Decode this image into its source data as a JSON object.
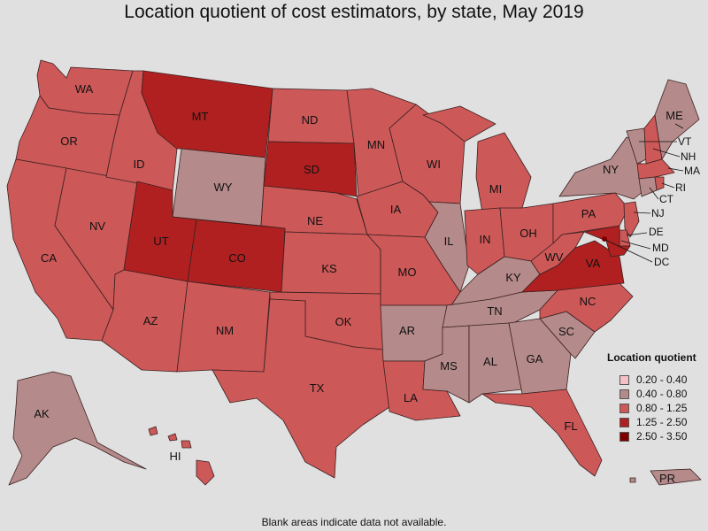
{
  "title": "Location quotient of cost estimators, by state, May 2019",
  "note": "Blank areas indicate data not available.",
  "legend": {
    "title": "Location quotient",
    "items": [
      {
        "label": "0.20 - 0.40",
        "color": "#f4c2c6"
      },
      {
        "label": "0.40 - 0.80",
        "color": "#b58a8a"
      },
      {
        "label": "0.80 - 1.25",
        "color": "#cd5858"
      },
      {
        "label": "1.25 - 2.50",
        "color": "#b02020"
      },
      {
        "label": "2.50 - 3.50",
        "color": "#800000"
      }
    ]
  },
  "chart_data": {
    "type": "choropleth",
    "title": "Location quotient of cost estimators, by state, May 2019",
    "legend_title": "Location quotient",
    "bins": [
      "0.20 - 0.40",
      "0.40 - 0.80",
      "0.80 - 1.25",
      "1.25 - 2.50",
      "2.50 - 3.50"
    ],
    "states": {
      "WA": "0.80 - 1.25",
      "OR": "0.80 - 1.25",
      "CA": "0.80 - 1.25",
      "NV": "0.80 - 1.25",
      "ID": "0.80 - 1.25",
      "MT": "1.25 - 2.50",
      "WY": "0.40 - 0.80",
      "UT": "1.25 - 2.50",
      "CO": "1.25 - 2.50",
      "AZ": "0.80 - 1.25",
      "NM": "0.80 - 1.25",
      "ND": "0.80 - 1.25",
      "SD": "1.25 - 2.50",
      "NE": "0.80 - 1.25",
      "KS": "0.80 - 1.25",
      "OK": "0.80 - 1.25",
      "TX": "0.80 - 1.25",
      "MN": "0.80 - 1.25",
      "IA": "0.80 - 1.25",
      "MO": "0.80 - 1.25",
      "AR": "0.40 - 0.80",
      "LA": "0.80 - 1.25",
      "WI": "0.80 - 1.25",
      "IL": "0.40 - 0.80",
      "MI": "0.80 - 1.25",
      "IN": "0.80 - 1.25",
      "OH": "0.80 - 1.25",
      "KY": "0.40 - 0.80",
      "TN": "0.40 - 0.80",
      "MS": "0.40 - 0.80",
      "AL": "0.40 - 0.80",
      "GA": "0.40 - 0.80",
      "FL": "0.80 - 1.25",
      "SC": "0.40 - 0.80",
      "NC": "0.80 - 1.25",
      "VA": "1.25 - 2.50",
      "WV": "0.80 - 1.25",
      "PA": "0.80 - 1.25",
      "NY": "0.40 - 0.80",
      "VT": "0.40 - 0.80",
      "NH": "0.80 - 1.25",
      "ME": "0.40 - 0.80",
      "MA": "0.80 - 1.25",
      "RI": "0.80 - 1.25",
      "CT": "0.40 - 0.80",
      "NJ": "0.80 - 1.25",
      "DE": "0.80 - 1.25",
      "MD": "1.25 - 2.50",
      "DC": "2.50 - 3.50",
      "AK": "0.40 - 0.80",
      "HI": "0.80 - 1.25",
      "PR": "0.40 - 0.80"
    }
  }
}
